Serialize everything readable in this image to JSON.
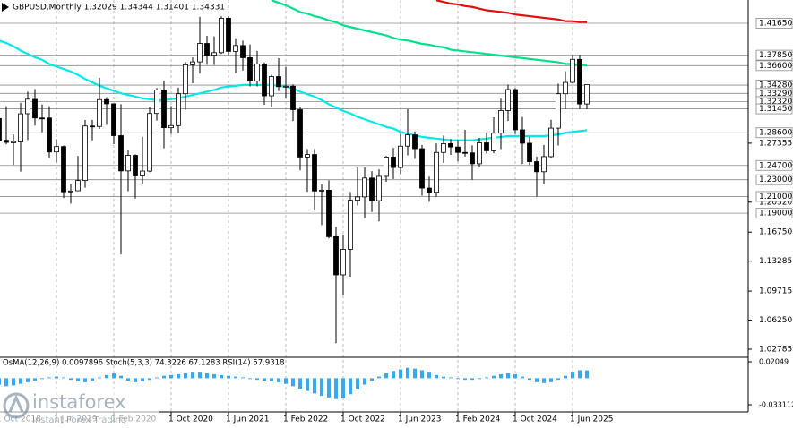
{
  "chart_data": {
    "type": "candlestick",
    "title": "GBPUSD,Monthly  1.32029 1.34344 1.31401 1.34331",
    "categories": [
      "1 Oct 2018",
      null,
      null,
      null,
      null,
      null,
      null,
      null,
      "1 Jun 2019",
      null,
      null,
      null,
      null,
      null,
      null,
      null,
      "1 Feb 2020",
      null,
      null,
      null,
      null,
      null,
      null,
      null,
      "1 Oct 2020",
      null,
      null,
      null,
      null,
      null,
      null,
      null,
      "1 Jun 2021",
      null,
      null,
      null,
      null,
      null,
      null,
      null,
      "1 Feb 2022",
      null,
      null,
      null,
      null,
      null,
      null,
      null,
      "1 Oct 2022",
      null,
      null,
      null,
      null,
      null,
      null,
      null,
      "1 Jun 2023",
      null,
      null,
      null,
      null,
      null,
      null,
      null,
      "1 Feb 2024",
      null,
      null,
      null,
      null,
      null,
      null,
      null,
      "1 Oct 2024",
      null,
      null,
      null,
      null,
      null,
      null,
      null,
      "1 Jun 2025",
      null,
      null
    ],
    "open": [
      1.303,
      1.277,
      1.274,
      1.275,
      1.3087,
      1.3258,
      1.3036,
      1.3036,
      1.2631,
      1.2695,
      1.2155,
      1.2168,
      1.229,
      1.294,
      1.2935,
      1.3255,
      1.3205,
      1.2825,
      1.2405,
      1.259,
      1.2345,
      1.2403,
      1.309,
      1.337,
      1.292,
      1.2945,
      1.3325,
      1.367,
      1.3705,
      1.3925,
      1.3785,
      1.3815,
      1.4225,
      1.383,
      1.39,
      1.3755,
      1.3475,
      1.368,
      1.33,
      1.353,
      1.341,
      1.3415,
      1.3135,
      1.257,
      1.26,
      1.2165,
      1.2175,
      1.162,
      1.1165,
      1.147,
      1.2055,
      1.2095,
      1.232,
      1.205,
      1.234,
      1.257,
      1.2445,
      1.27,
      1.2835,
      1.267,
      1.22,
      1.215,
      1.2625,
      1.273,
      1.269,
      1.2625,
      1.262,
      1.249,
      1.274,
      1.2645,
      1.2855,
      1.3125,
      1.3375,
      1.2895,
      1.2735,
      1.2515,
      1.2395,
      1.2575,
      1.2915,
      1.3325,
      1.346,
      1.3735,
      1.32029
    ],
    "high": [
      1.3259,
      1.3176,
      1.284,
      1.3216,
      1.335,
      1.3381,
      1.3197,
      1.3176,
      1.2783,
      1.2708,
      1.225,
      1.2582,
      1.3012,
      1.3013,
      1.3515,
      1.3285,
      1.321,
      1.32,
      1.2648,
      1.2602,
      1.2813,
      1.317,
      1.3394,
      1.3483,
      1.3177,
      1.3398,
      1.3704,
      1.3758,
      1.4241,
      1.4016,
      1.4009,
      1.425,
      1.4248,
      1.3985,
      1.3958,
      1.3913,
      1.3835,
      1.3698,
      1.355,
      1.3749,
      1.3644,
      1.3437,
      1.3167,
      1.2667,
      1.2666,
      1.2246,
      1.2293,
      1.1738,
      1.1646,
      1.2154,
      1.2446,
      1.2448,
      1.2402,
      1.2424,
      1.2584,
      1.268,
      1.2849,
      1.3142,
      1.2876,
      1.2714,
      1.2337,
      1.2733,
      1.2828,
      1.2785,
      1.2773,
      1.2894,
      1.2709,
      1.28,
      1.286,
      1.3044,
      1.3266,
      1.3434,
      1.3391,
      1.3048,
      1.2812,
      1.2576,
      1.2715,
      1.3015,
      1.3444,
      1.3593,
      1.3788,
      1.379,
      1.34344
    ],
    "low": [
      1.2696,
      1.2723,
      1.2477,
      1.2397,
      1.2773,
      1.2945,
      1.2866,
      1.2559,
      1.2506,
      1.2081,
      1.2015,
      1.2195,
      1.2205,
      1.2769,
      1.2905,
      1.2954,
      1.2724,
      1.1409,
      1.2163,
      1.2075,
      1.2252,
      1.239,
      1.3005,
      1.2675,
      1.2845,
      1.2855,
      1.3135,
      1.345,
      1.3565,
      1.367,
      1.3669,
      1.38,
      1.3787,
      1.3571,
      1.3602,
      1.3412,
      1.3412,
      1.3194,
      1.3161,
      1.3358,
      1.3273,
      1.3,
      1.2411,
      1.2155,
      1.1934,
      1.1759,
      1.16,
      1.035,
      1.0924,
      1.1143,
      1.1992,
      1.1841,
      1.1915,
      1.1803,
      1.2275,
      1.2308,
      1.2369,
      1.259,
      1.2547,
      1.211,
      1.2037,
      1.2096,
      1.25,
      1.2596,
      1.2518,
      1.2575,
      1.2299,
      1.2446,
      1.2613,
      1.2615,
      1.2665,
      1.3001,
      1.2844,
      1.2487,
      1.2475,
      1.21,
      1.2249,
      1.256,
      1.2708,
      1.314,
      1.3447,
      1.3141,
      1.31401
    ],
    "close": [
      1.2765,
      1.2745,
      1.2754,
      1.3086,
      1.326,
      1.3036,
      1.3034,
      1.263,
      1.2695,
      1.2155,
      1.2165,
      1.229,
      1.294,
      1.2935,
      1.3255,
      1.3205,
      1.2825,
      1.2405,
      1.259,
      1.2345,
      1.2403,
      1.309,
      1.337,
      1.292,
      1.2945,
      1.3325,
      1.367,
      1.3705,
      1.3925,
      1.3785,
      1.3815,
      1.4225,
      1.383,
      1.39,
      1.3755,
      1.3475,
      1.368,
      1.33,
      1.353,
      1.341,
      1.3415,
      1.3135,
      1.257,
      1.26,
      1.2165,
      1.2175,
      1.162,
      1.1165,
      1.147,
      1.2055,
      1.2095,
      1.232,
      1.205,
      1.234,
      1.257,
      1.2445,
      1.27,
      1.2835,
      1.267,
      1.22,
      1.215,
      1.2625,
      1.273,
      1.269,
      1.2625,
      1.262,
      1.249,
      1.274,
      1.2645,
      1.2855,
      1.3125,
      1.3375,
      1.2895,
      1.2735,
      1.2515,
      1.2395,
      1.2575,
      1.2915,
      1.3325,
      1.346,
      1.3735,
      1.32029,
      1.34331
    ],
    "lines": [
      {
        "color": "#00e8e8",
        "values": [
          1.396,
          1.393,
          1.389,
          1.384,
          1.38,
          1.376,
          1.373,
          1.368,
          1.365,
          1.362,
          1.359,
          1.355,
          1.35,
          1.346,
          1.342,
          1.339,
          1.336,
          1.333,
          1.331,
          1.329,
          1.327,
          1.326,
          1.325,
          1.325,
          1.326,
          1.327,
          1.329,
          1.331,
          1.333,
          1.335,
          1.337,
          1.34,
          1.341,
          1.342,
          1.343,
          1.343,
          1.343,
          1.343,
          1.343,
          1.342,
          1.341,
          1.339,
          1.335,
          1.332,
          1.329,
          1.325,
          1.32,
          1.316,
          1.312,
          1.309,
          1.305,
          1.302,
          1.299,
          1.296,
          1.293,
          1.291,
          1.287,
          1.285,
          1.283,
          1.281,
          1.28,
          1.279,
          1.278,
          1.277,
          1.277,
          1.277,
          1.277,
          1.278,
          1.279,
          1.28,
          1.281,
          1.282,
          1.282,
          1.282,
          1.282,
          1.282,
          1.282,
          1.283,
          1.284,
          1.286,
          1.287,
          1.288,
          1.289
        ]
      },
      {
        "color": "#00e08c",
        "values": [
          null,
          null,
          null,
          null,
          null,
          null,
          null,
          null,
          null,
          null,
          null,
          null,
          null,
          null,
          null,
          null,
          null,
          null,
          null,
          null,
          null,
          null,
          null,
          null,
          null,
          null,
          null,
          null,
          null,
          null,
          null,
          null,
          null,
          null,
          null,
          null,
          null,
          null,
          1.444,
          1.441,
          1.438,
          1.434,
          1.43,
          1.428,
          1.425,
          1.423,
          1.42,
          1.418,
          1.414,
          1.412,
          1.41,
          1.408,
          1.406,
          1.404,
          1.402,
          1.399,
          1.397,
          1.396,
          1.394,
          1.392,
          1.391,
          1.389,
          1.388,
          1.385,
          1.384,
          1.383,
          1.382,
          1.381,
          1.38,
          1.379,
          1.378,
          1.377,
          1.376,
          1.375,
          1.374,
          1.373,
          1.372,
          1.371,
          1.37,
          1.368,
          1.368,
          1.367,
          1.366
        ]
      },
      {
        "color": "#e01010",
        "values": [
          null,
          null,
          null,
          null,
          null,
          null,
          null,
          null,
          null,
          null,
          null,
          null,
          null,
          null,
          null,
          null,
          null,
          null,
          null,
          null,
          null,
          null,
          null,
          null,
          null,
          null,
          null,
          null,
          null,
          null,
          null,
          null,
          null,
          null,
          null,
          null,
          null,
          null,
          null,
          null,
          null,
          null,
          null,
          null,
          null,
          null,
          null,
          null,
          null,
          null,
          null,
          null,
          null,
          null,
          null,
          null,
          null,
          null,
          null,
          null,
          null,
          1.444,
          1.442,
          1.44,
          1.439,
          1.437,
          1.436,
          1.434,
          1.432,
          1.431,
          1.43,
          1.429,
          1.427,
          1.426,
          1.425,
          1.424,
          1.423,
          1.422,
          1.421,
          1.419,
          1.419,
          1.418,
          1.418
        ]
      }
    ],
    "ylim": [
      1.0193,
      1.4443
    ],
    "yticks": [
      {
        "value": 1.27355,
        "label": "1.27355"
      },
      {
        "value": 1.2032,
        "label": "1.20320"
      },
      {
        "value": 1.1675,
        "label": "1.16750"
      },
      {
        "value": 1.13285,
        "label": "1.13285"
      },
      {
        "value": 1.09715,
        "label": "1.09715"
      },
      {
        "value": 1.0625,
        "label": "1.06250"
      },
      {
        "value": 1.02785,
        "label": "1.02785"
      }
    ],
    "levels": [
      {
        "value": 1.4165,
        "label": "1.41650"
      },
      {
        "value": 1.3785,
        "label": "1.37850"
      },
      {
        "value": 1.366,
        "label": "1.36600"
      },
      {
        "value": 1.3428,
        "label": "1.34280"
      },
      {
        "value": 1.3329,
        "label": "1.33290"
      },
      {
        "value": 1.3232,
        "label": "1.32320"
      },
      {
        "value": 1.3145,
        "label": "1.31450"
      },
      {
        "value": 1.286,
        "label": "1.28600"
      },
      {
        "value": 1.247,
        "label": "1.24700"
      },
      {
        "value": 1.23,
        "label": "1.23000"
      },
      {
        "value": 1.21,
        "label": "1.21000"
      },
      {
        "value": 1.19,
        "label": "1.19000"
      }
    ],
    "indicator": {
      "label": "OsMA(12,26,9) 0.0097896  Stoch(5,3,3) 74.3226 67.1283  RSI(14) 57.9318",
      "color": "#3aa8f0",
      "values": [
        -0.008,
        -0.01,
        -0.009,
        -0.007,
        -0.005,
        -0.003,
        -0.001,
        0.001,
        0.002,
        0.001,
        -0.002,
        -0.004,
        -0.005,
        -0.003,
        0.001,
        0.004,
        0.006,
        0.003,
        -0.003,
        -0.005,
        -0.004,
        -0.002,
        0.001,
        0.003,
        0.004,
        0.005,
        0.006,
        0.007,
        0.007,
        0.006,
        0.005,
        0.004,
        0.003,
        0.002,
        0.001,
        -0.001,
        -0.002,
        -0.003,
        -0.004,
        -0.005,
        -0.007,
        -0.01,
        -0.013,
        -0.016,
        -0.019,
        -0.022,
        -0.024,
        -0.026,
        -0.025,
        -0.02,
        -0.014,
        -0.008,
        -0.003,
        0.002,
        0.006,
        0.009,
        0.011,
        0.013,
        0.012,
        0.01,
        0.007,
        0.004,
        0.002,
        0.001,
        -0.001,
        -0.002,
        -0.002,
        -0.001,
        0.001,
        0.003,
        0.005,
        0.006,
        0.005,
        0.002,
        -0.002,
        -0.005,
        -0.006,
        -0.005,
        -0.002,
        0.003,
        0.007,
        0.01,
        0.0097896
      ],
      "ylim": [
        -0.042,
        0.025
      ],
      "yticks": [
        0.02049,
        -0.033112
      ]
    },
    "watermark": {
      "brand": "instaforex",
      "tagline": "Instant Forex Trading"
    }
  }
}
